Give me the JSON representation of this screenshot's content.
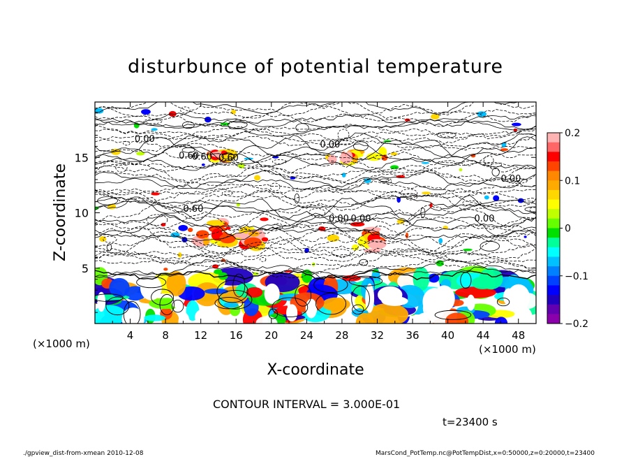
{
  "chart_data": {
    "type": "heatmap",
    "title": "disturbunce of potential temperature",
    "xlabel": "X-coordinate",
    "ylabel": "Z-coordinate",
    "x_unit_left": "(×1000 m)",
    "x_unit_right": "(×1000 m)",
    "xlim": [
      0,
      50
    ],
    "ylim": [
      0,
      20
    ],
    "x_ticks": [
      4,
      8,
      12,
      16,
      20,
      24,
      28,
      32,
      36,
      40,
      44,
      48
    ],
    "y_ticks": [
      5,
      10,
      15
    ],
    "colorbar": {
      "range": [
        -0.2,
        0.2
      ],
      "tick_values": [
        0.2,
        0.1,
        0,
        -0.1,
        -0.2
      ],
      "tick_labels": [
        "0.2",
        "0.1",
        "0",
        "−0.1",
        "−0.2"
      ],
      "colors": [
        "#ffb3b3",
        "#ff6666",
        "#ff0000",
        "#ff4400",
        "#ff8800",
        "#ffaa00",
        "#ffd700",
        "#ffff00",
        "#bfff00",
        "#66ff00",
        "#00e000",
        "#00ff99",
        "#00ffff",
        "#00c0ff",
        "#0080ff",
        "#0040ff",
        "#0000ff",
        "#2000c0",
        "#6000b0",
        "#8a00aa"
      ]
    },
    "contour_labels": [
      "0.00",
      "0.60",
      "0.60",
      "0.60",
      "0.00",
      "0.60",
      "0.00",
      "0.00",
      "0.00",
      "0.00"
    ],
    "contour_interval_text": "CONTOUR INTERVAL = 3.000E-01",
    "time_text": "t=23400 s"
  },
  "footer": {
    "left": "./gpview_dist-from-xmean  2010-12-08",
    "right": "MarsCond_PotTemp.nc@PotTempDist,x=0:50000,z=0:20000,t=23400"
  }
}
